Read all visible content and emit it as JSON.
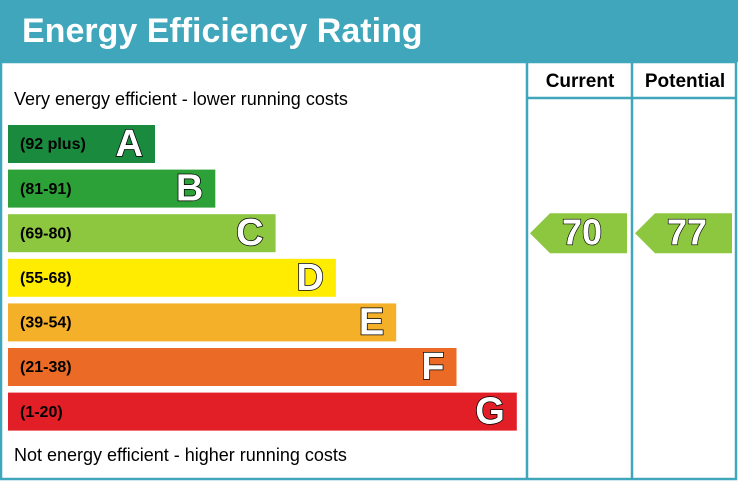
{
  "chart_data": {
    "type": "epc",
    "title": "Energy Efficiency Rating",
    "top_note": "Very energy efficient - lower running costs",
    "bottom_note": "Not energy efficient - higher running costs",
    "columns": [
      "Current",
      "Potential"
    ],
    "bands": [
      {
        "range": "(92 plus)",
        "letter": "A",
        "color": "#1a8a3e"
      },
      {
        "range": "(81-91)",
        "letter": "B",
        "color": "#2ca137"
      },
      {
        "range": "(69-80)",
        "letter": "C",
        "color": "#8dc63f"
      },
      {
        "range": "(55-68)",
        "letter": "D",
        "color": "#ffec00"
      },
      {
        "range": "(39-54)",
        "letter": "E",
        "color": "#f5b02a"
      },
      {
        "range": "(21-38)",
        "letter": "F",
        "color": "#eb6a25"
      },
      {
        "range": "(1-20)",
        "letter": "G",
        "color": "#e21f26"
      }
    ],
    "values": [
      70,
      77
    ]
  }
}
